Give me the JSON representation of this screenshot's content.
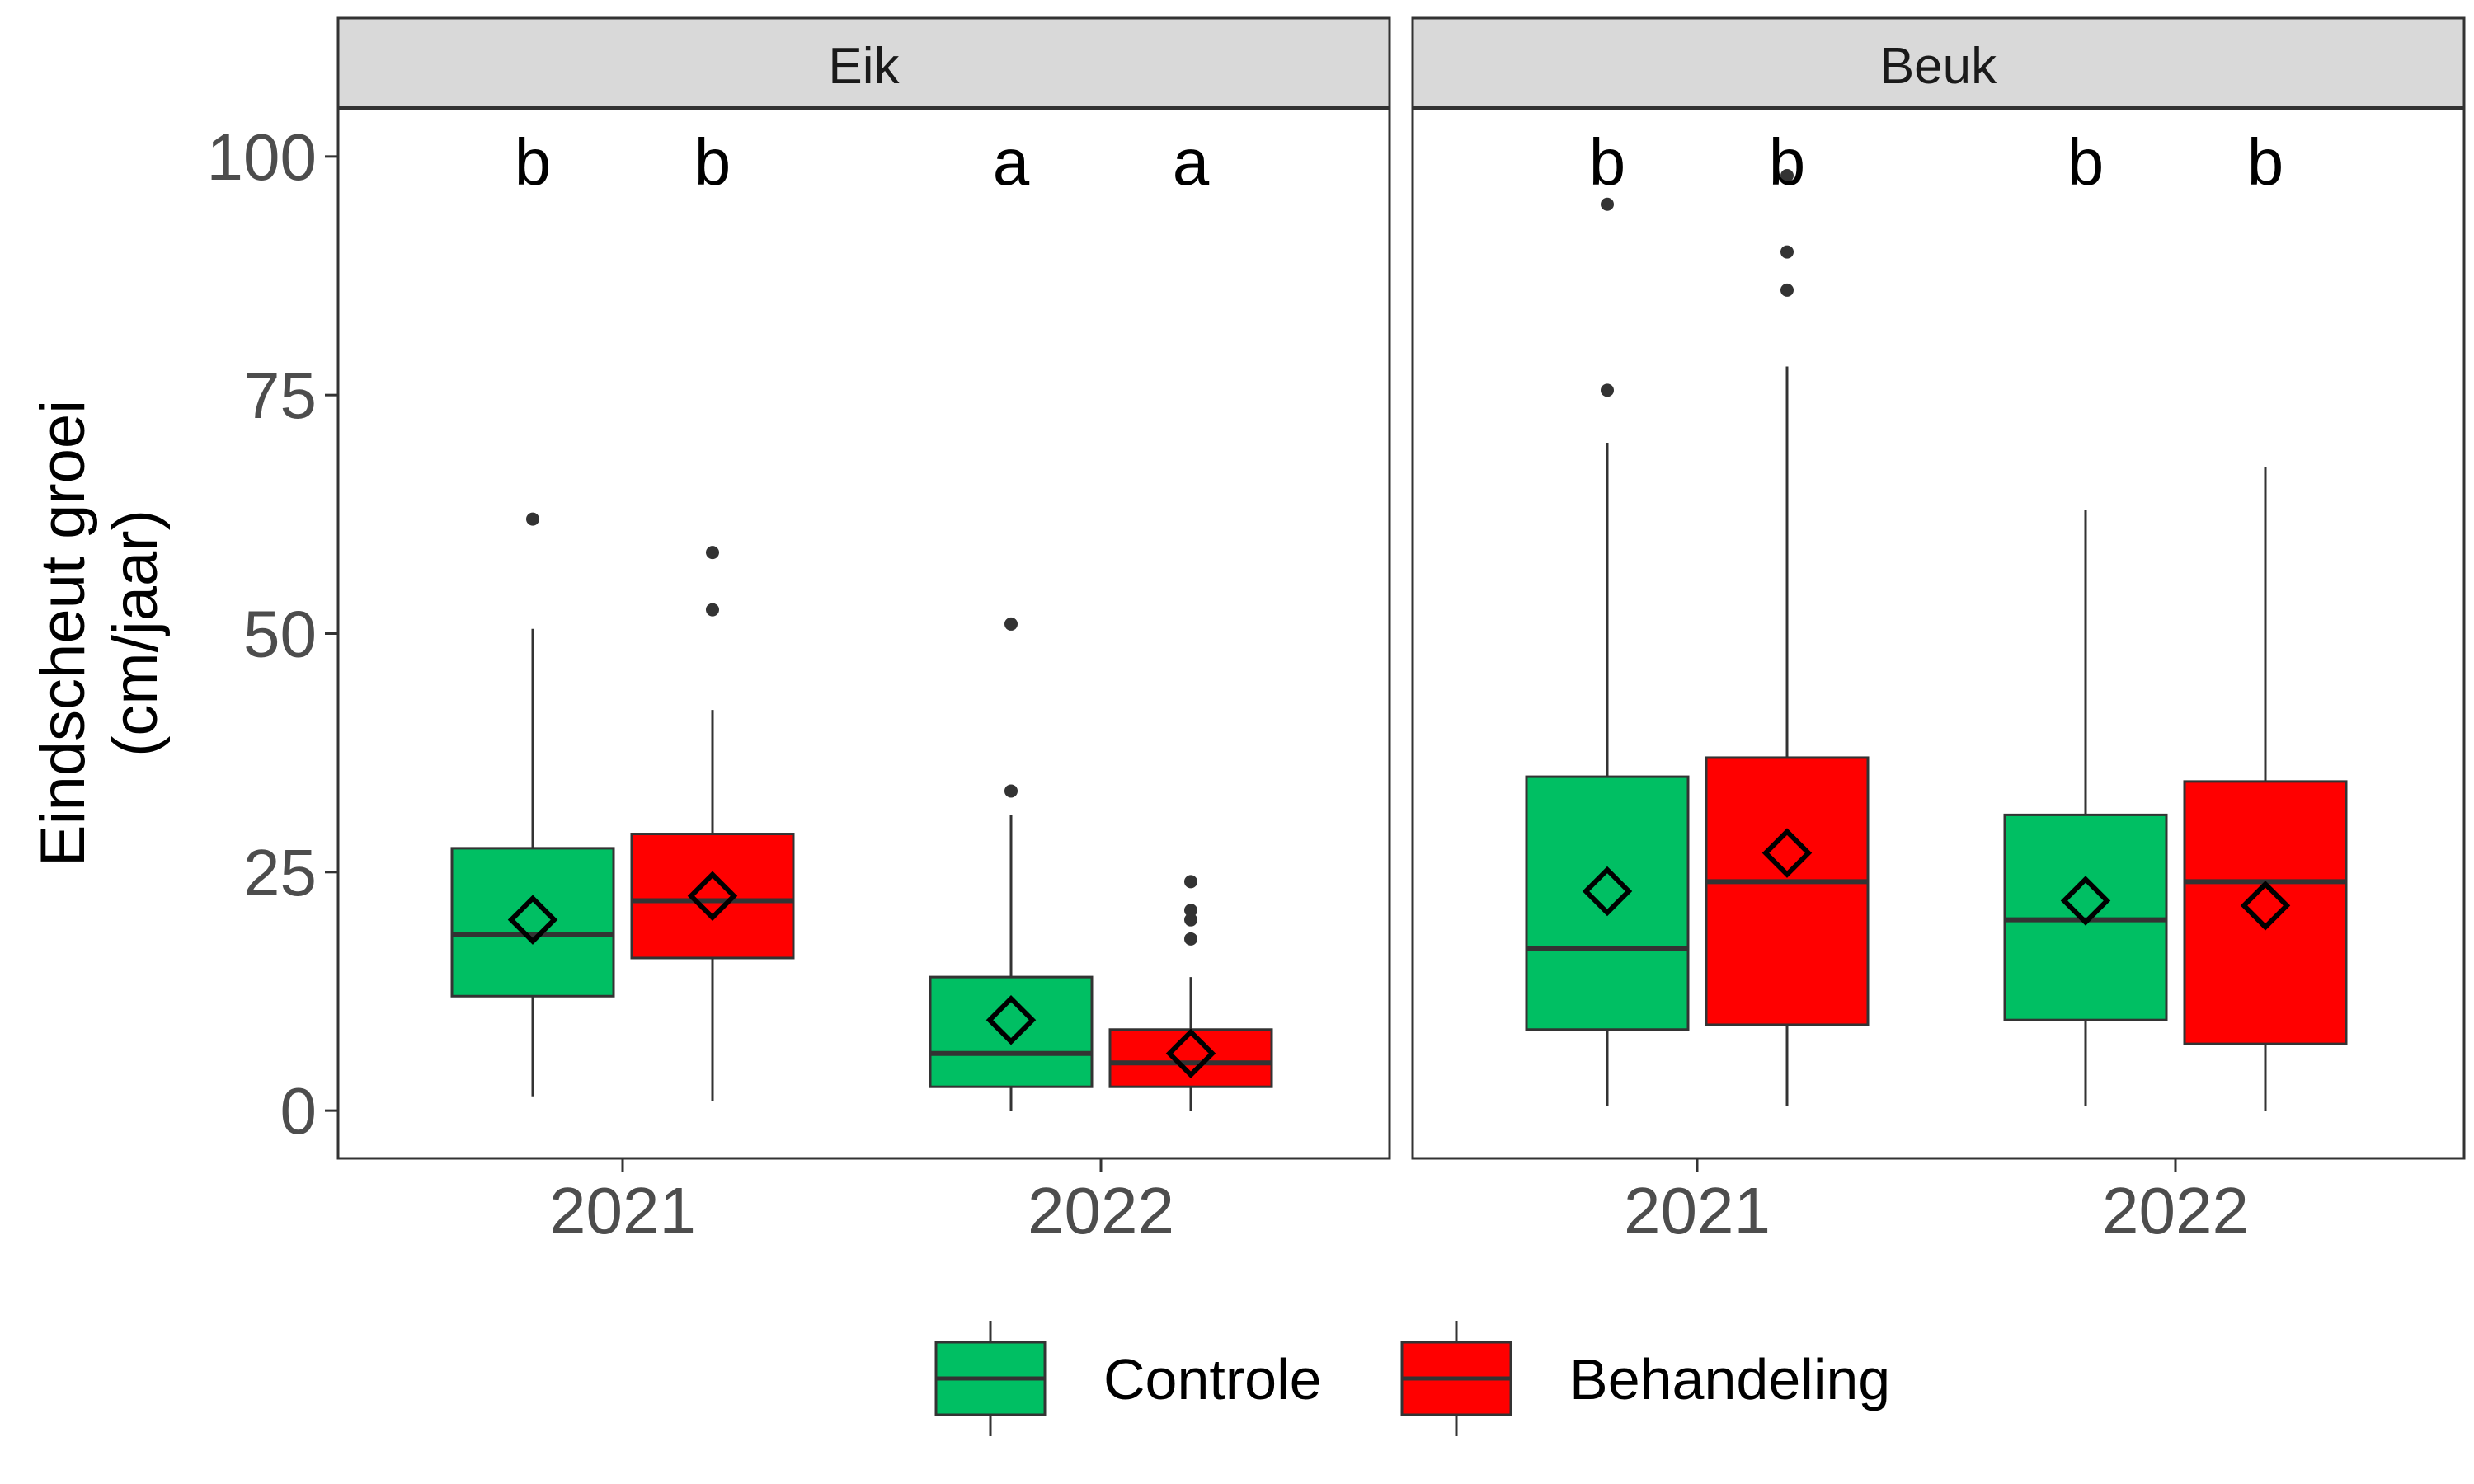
{
  "colors": {
    "controle": "#00BF63",
    "behandeling": "#FF0000",
    "strip_bg": "#D9D9D9",
    "outline": "#333333"
  },
  "chart_data": {
    "type": "boxplot",
    "ylabel_lines": [
      "Eindscheut groei",
      "(cm/jaar)"
    ],
    "ylim": [
      -5,
      105
    ],
    "yticks": [
      "0",
      "25",
      "50",
      "75",
      "100"
    ],
    "ytick_values": [
      0,
      25,
      50,
      75,
      100
    ],
    "categories": [
      "2021",
      "2022"
    ],
    "groups": [
      "Controle",
      "Behandeling"
    ],
    "legend": {
      "position": "bottom",
      "entries": [
        {
          "label": "Controle",
          "color": "#00BF63"
        },
        {
          "label": "Behandeling",
          "color": "#FF0000"
        }
      ]
    },
    "facets": [
      {
        "name": "Eik",
        "boxes": [
          {
            "year": "2021",
            "group": "Controle",
            "min": 1.5,
            "q1": 12,
            "median": 18.5,
            "q3": 27.5,
            "max": 50.5,
            "mean": 20,
            "outliers": [
              62
            ],
            "letter": "b"
          },
          {
            "year": "2021",
            "group": "Behandeling",
            "min": 1,
            "q1": 16,
            "median": 22,
            "q3": 29,
            "max": 42,
            "mean": 22.5,
            "outliers": [
              52.5,
              58.5
            ],
            "letter": "b"
          },
          {
            "year": "2022",
            "group": "Controle",
            "min": 0,
            "q1": 2.5,
            "median": 6,
            "q3": 14,
            "max": 31,
            "mean": 9.5,
            "outliers": [
              33.5,
              51
            ],
            "letter": "a"
          },
          {
            "year": "2022",
            "group": "Behandeling",
            "min": 0,
            "q1": 2.5,
            "median": 5,
            "q3": 8.5,
            "max": 14,
            "mean": 6,
            "outliers": [
              18,
              20,
              21,
              24
            ],
            "letter": "a"
          }
        ]
      },
      {
        "name": "Beuk",
        "boxes": [
          {
            "year": "2021",
            "group": "Controle",
            "min": 0.5,
            "q1": 8.5,
            "median": 17,
            "q3": 35,
            "max": 70,
            "mean": 23,
            "outliers": [
              75.5,
              95
            ],
            "letter": "b"
          },
          {
            "year": "2021",
            "group": "Behandeling",
            "min": 0.5,
            "q1": 9,
            "median": 24,
            "q3": 37,
            "max": 78,
            "mean": 27,
            "outliers": [
              86,
              90,
              98
            ],
            "letter": "b"
          },
          {
            "year": "2022",
            "group": "Controle",
            "min": 0.5,
            "q1": 9.5,
            "median": 20,
            "q3": 31,
            "max": 63,
            "mean": 22,
            "outliers": [],
            "letter": "b"
          },
          {
            "year": "2022",
            "group": "Behandeling",
            "min": 0,
            "q1": 7,
            "median": 24,
            "q3": 34.5,
            "max": 67.5,
            "mean": 21.5,
            "outliers": [],
            "letter": "b"
          }
        ]
      }
    ]
  }
}
